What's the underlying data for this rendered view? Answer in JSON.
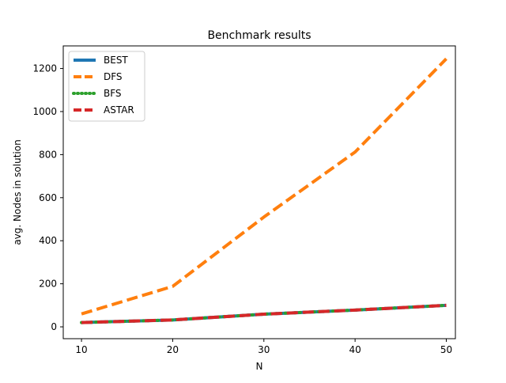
{
  "chart_data": {
    "type": "line",
    "title": "Benchmark results",
    "xlabel": "N",
    "ylabel": "avg. Nodes in solution",
    "x": [
      10,
      20,
      30,
      40,
      50
    ],
    "xlim": [
      8,
      51
    ],
    "ylim": [
      -55,
      1305
    ],
    "xticks": [
      10,
      20,
      30,
      40,
      50
    ],
    "yticks": [
      0,
      200,
      400,
      600,
      800,
      1000,
      1200
    ],
    "grid": false,
    "legend_position": "upper-left",
    "series": [
      {
        "name": "BEST",
        "values": [
          20,
          32,
          59,
          78,
          100
        ],
        "color": "#1f77b4",
        "dashed": false
      },
      {
        "name": "DFS",
        "values": [
          60,
          188,
          510,
          812,
          1245
        ],
        "color": "#ff7f0e",
        "dashed": true
      },
      {
        "name": "BFS",
        "values": [
          20,
          32,
          59,
          78,
          100
        ],
        "color": "#2ca02c",
        "dashed": false,
        "dotted": true
      },
      {
        "name": "ASTAR",
        "values": [
          20,
          32,
          59,
          78,
          100
        ],
        "color": "#d62728",
        "dashed": true
      }
    ]
  }
}
